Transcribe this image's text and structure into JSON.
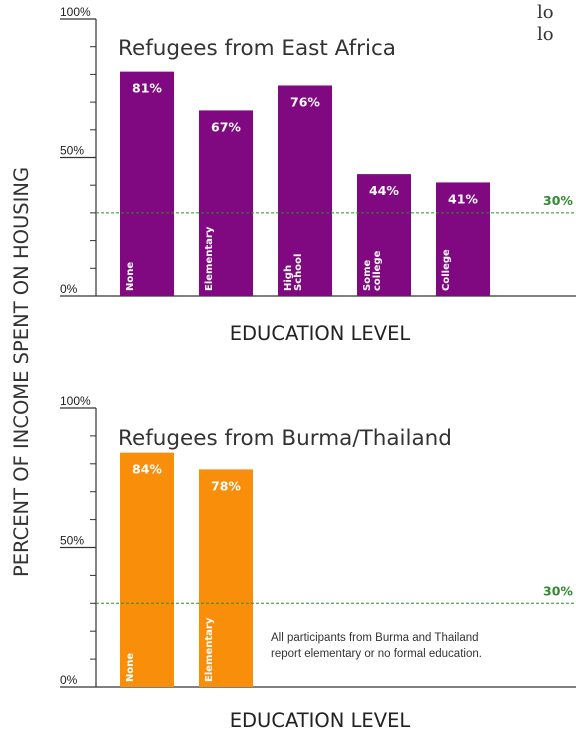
{
  "corner_text": {
    "line1": "lo",
    "line2": "lo"
  },
  "ylabel": "PERCENT OF INCOME SPENT ON HOUSING",
  "colors": {
    "purple": "#800880",
    "orange": "#F98E0B",
    "reference": "#2E8B2E"
  },
  "chart_data": [
    {
      "type": "bar",
      "title": "Refugees from East Africa",
      "xlabel": "EDUCATION LEVEL",
      "ylabel": "PERCENT OF INCOME SPENT ON HOUSING",
      "categories": [
        "None",
        "Elementary",
        "High School",
        "Some college",
        "College"
      ],
      "values": [
        81,
        67,
        76,
        44,
        41
      ],
      "value_labels": [
        "81%",
        "67%",
        "76%",
        "44%",
        "41%"
      ],
      "yticks": [
        "0%",
        "50%",
        "100%"
      ],
      "ylim": [
        0,
        100
      ],
      "reference_line": {
        "value": 30,
        "label": "30%"
      },
      "color": "#800880"
    },
    {
      "type": "bar",
      "title": "Refugees from Burma/Thailand",
      "xlabel": "EDUCATION LEVEL",
      "ylabel": "PERCENT OF INCOME SPENT ON HOUSING",
      "categories": [
        "None",
        "Elementary"
      ],
      "values": [
        84,
        78
      ],
      "value_labels": [
        "84%",
        "78%"
      ],
      "yticks": [
        "0%",
        "50%",
        "100%"
      ],
      "ylim": [
        0,
        100
      ],
      "reference_line": {
        "value": 30,
        "label": "30%"
      },
      "annotation": [
        "All participants from Burma and Thailand",
        "report elementary or no formal education."
      ],
      "color": "#F98E0B"
    }
  ]
}
